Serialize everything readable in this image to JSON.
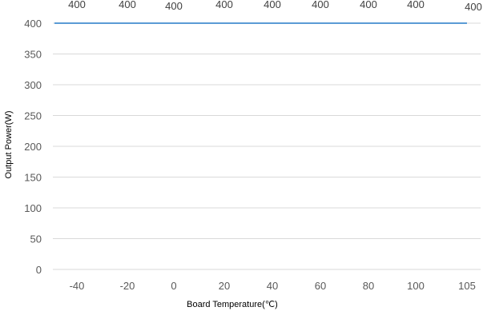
{
  "chart_data": {
    "type": "line",
    "categories": [
      "-40",
      "-20",
      "0",
      "20",
      "40",
      "60",
      "80",
      "100",
      "105"
    ],
    "series": [
      {
        "values": [
          400,
          400,
          400,
          400,
          400,
          400,
          400,
          400,
          400
        ],
        "color": "#5b9bd5"
      }
    ],
    "data_labels": [
      "400",
      "400",
      "400",
      "400",
      "400",
      "400",
      "400",
      "400",
      "400"
    ],
    "xlabel": "Board Temperature(℃)",
    "ylabel": "Output Power(W)",
    "ylim": [
      0,
      400
    ],
    "yticks": [
      0,
      50,
      100,
      150,
      200,
      250,
      300,
      350,
      400
    ],
    "grid": true,
    "legend": "none"
  }
}
